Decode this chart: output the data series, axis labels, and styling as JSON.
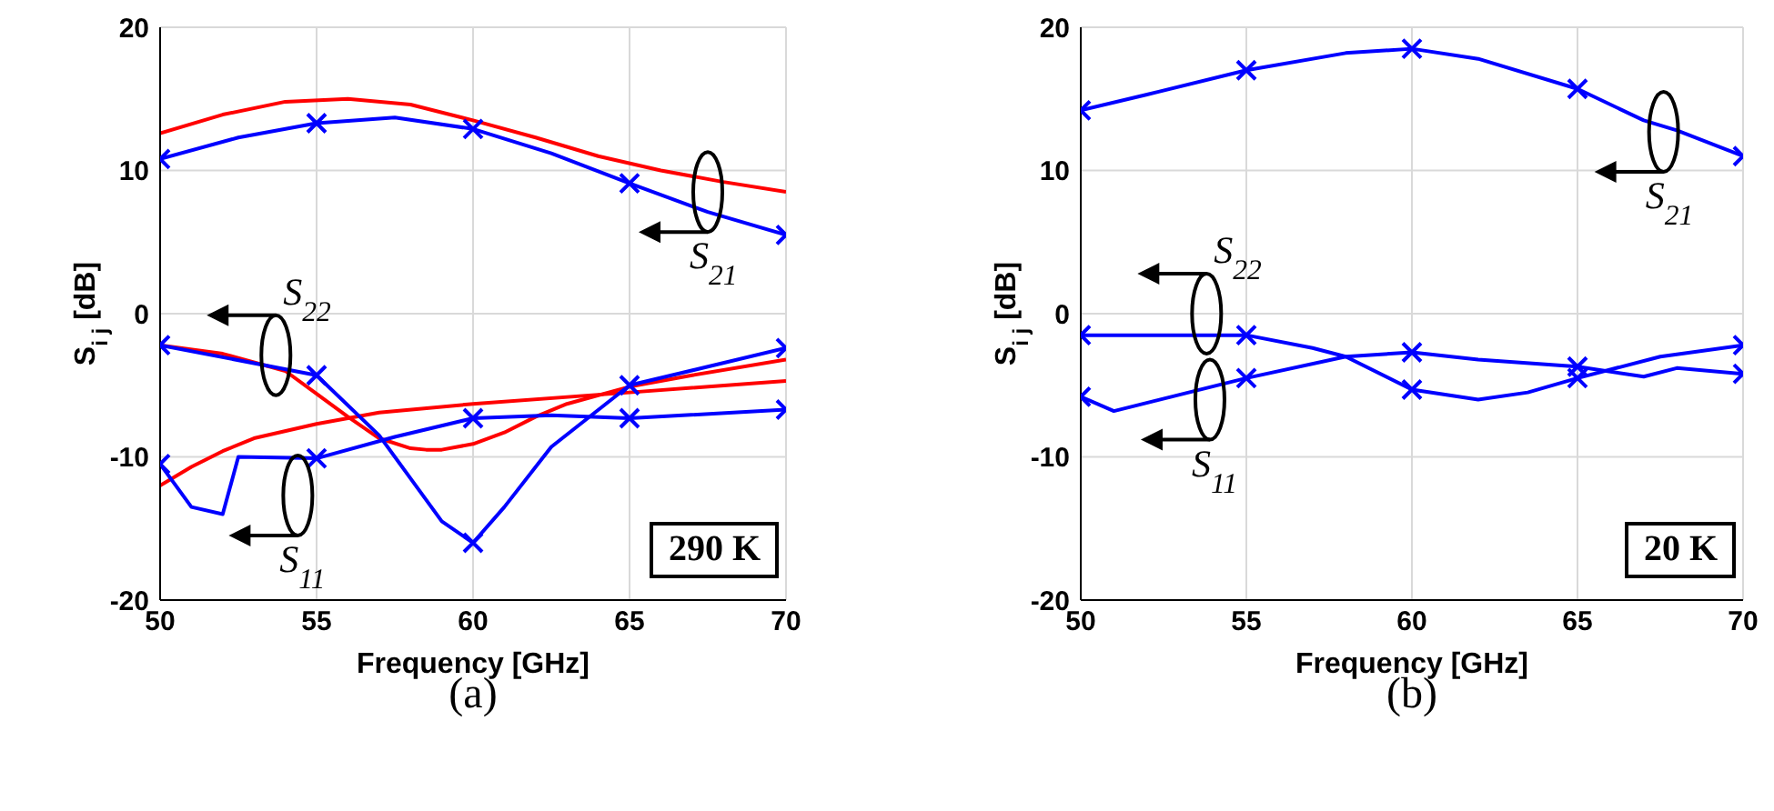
{
  "chart_data": [
    {
      "type": "line",
      "title": "(a)",
      "xlabel": "Frequency [GHz]",
      "ylabel": "S$_{i j}$ [dB]",
      "xlim": [
        50,
        70
      ],
      "xticks": [
        50,
        55,
        60,
        65,
        70
      ],
      "ylim": [
        -20,
        20
      ],
      "yticks": [
        -20,
        -10,
        0,
        10,
        20
      ],
      "grid": true,
      "legend": false,
      "line_style": "solid",
      "series": [
        {
          "color": "#ff0000",
          "marker": "none",
          "x": [
            50,
            52,
            54,
            56,
            58,
            60,
            62,
            64,
            66,
            68,
            70
          ],
          "values": [
            12.6,
            13.9,
            14.8,
            15.0,
            14.6,
            13.5,
            12.3,
            11.0,
            10.0,
            9.2,
            8.5
          ]
        },
        {
          "color": "#0000ff",
          "marker": "cross",
          "x": [
            50,
            52.5,
            55,
            57.5,
            60,
            62.5,
            65,
            67.5,
            70
          ],
          "values": [
            10.8,
            12.3,
            13.3,
            13.7,
            12.9,
            11.2,
            9.1,
            7.1,
            5.5
          ]
        },
        {
          "color": "#ff0000",
          "marker": "none",
          "x": [
            50,
            52,
            54,
            55,
            56,
            57,
            58,
            58.5,
            59,
            60,
            61,
            62,
            63,
            65,
            67,
            70
          ],
          "values": [
            -2.2,
            -2.8,
            -4.0,
            -5.6,
            -7.2,
            -8.7,
            -9.4,
            -9.5,
            -9.5,
            -9.1,
            -8.3,
            -7.2,
            -6.3,
            -5.1,
            -4.3,
            -3.2
          ]
        },
        {
          "color": "#ff0000",
          "marker": "none",
          "x": [
            50,
            51,
            52,
            53,
            55,
            57,
            60,
            65,
            70
          ],
          "values": [
            -12,
            -10.7,
            -9.6,
            -8.7,
            -7.7,
            -6.9,
            -6.3,
            -5.5,
            -4.7
          ]
        },
        {
          "color": "#0000ff",
          "marker": "cross",
          "x": [
            50,
            55,
            57,
            58,
            59,
            60,
            61,
            62.5,
            65,
            70
          ],
          "values": [
            -2.2,
            -4.3,
            -8.5,
            -11.5,
            -14.5,
            -16,
            -13.5,
            -9.3,
            -5.0,
            -2.4
          ]
        },
        {
          "color": "#0000ff",
          "marker": "cross",
          "x": [
            50,
            51,
            52,
            52.5,
            55,
            57.5,
            60,
            62.5,
            65,
            70
          ],
          "values": [
            -10.5,
            -13.5,
            -14,
            -10,
            -10.1,
            -8.6,
            -7.3,
            -7.1,
            -7.3,
            -6.7
          ]
        }
      ],
      "annotations": [
        {
          "text": "S$_{21}$",
          "x": 67.5,
          "y": 8.5
        },
        {
          "text": "S$_{22}$",
          "x": 53.7,
          "y": -2.9
        },
        {
          "text": "S$_{11}$",
          "x": 54.4,
          "y": -12.7
        },
        "290 K"
      ]
    },
    {
      "type": "line",
      "title": "(b)",
      "xlabel": "Frequency [GHz]",
      "ylabel": "S$_{i j}$ [dB]",
      "xlim": [
        50,
        70
      ],
      "xticks": [
        50,
        55,
        60,
        65,
        70
      ],
      "ylim": [
        -20,
        20
      ],
      "yticks": [
        -20,
        -10,
        0,
        10,
        20
      ],
      "grid": true,
      "legend": false,
      "line_style": "solid",
      "series": [
        {
          "color": "#0000ff",
          "marker": "cross",
          "x": [
            50,
            52,
            55,
            58,
            60,
            62,
            65,
            67,
            68,
            70
          ],
          "values": [
            14.2,
            15.3,
            17.0,
            18.2,
            18.5,
            17.8,
            15.7,
            13.5,
            12.8,
            11.0
          ]
        },
        {
          "color": "#0000ff",
          "marker": "cross",
          "x": [
            50,
            55,
            57,
            58,
            60,
            62,
            63.5,
            65,
            67.5,
            70
          ],
          "values": [
            -1.5,
            -1.5,
            -2.4,
            -3.0,
            -5.3,
            -6.0,
            -5.5,
            -4.5,
            -3.0,
            -2.2
          ]
        },
        {
          "color": "#0000ff",
          "marker": "cross",
          "x": [
            50,
            51,
            55,
            58,
            60,
            62,
            65,
            67,
            68,
            70
          ],
          "values": [
            -5.8,
            -6.8,
            -4.5,
            -3.0,
            -2.7,
            -3.2,
            -3.7,
            -4.4,
            -3.8,
            -4.2
          ]
        }
      ],
      "annotations": [
        {
          "text": "S$_{21}$",
          "x": 67.6,
          "y": 12.7
        },
        {
          "text": "S$_{22}$",
          "x": 53.8,
          "y": 0
        },
        {
          "text": "S$_{11}$",
          "x": 53.9,
          "y": -6
        },
        "20 K"
      ]
    }
  ]
}
